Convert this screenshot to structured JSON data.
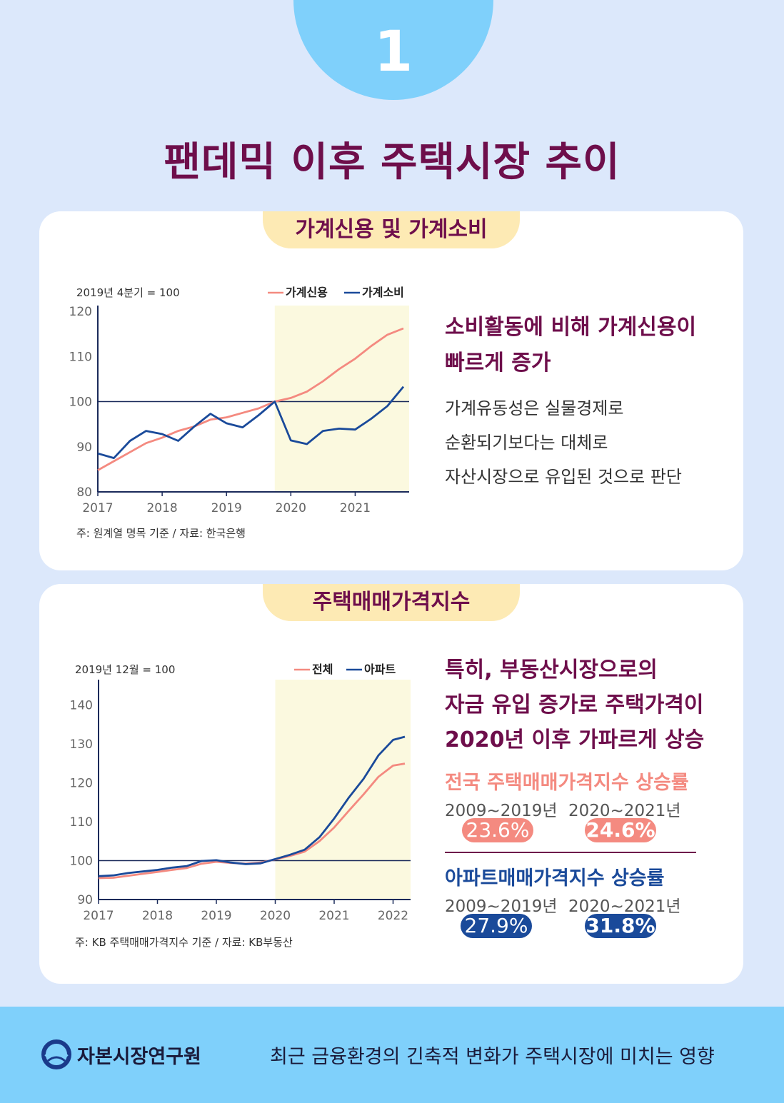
{
  "badge_number": "1",
  "title": "팬데믹 이후 주택시장 추이",
  "colors": {
    "series_red": "#f48a80",
    "series_blue": "#1a4a9a",
    "highlight_box": "#fbf9df",
    "title": "#6e0e4b",
    "tab_bg": "#fdeab4"
  },
  "card1": {
    "tab": "가계신용 및 가계소비",
    "right_headline": [
      "소비활동에 비해 가계신용이",
      "빠르게 증가"
    ],
    "right_body": [
      "가계유동성은 실물경제로",
      "순환되기보다는 대체로",
      "자산시장으로 유입된 것으로 판단"
    ]
  },
  "card2": {
    "tab": "주택매매가격지수",
    "right_headline": [
      "특히, 부동산시장으로의",
      "자금 유입 증가로 주택가격이",
      "2020년 이후 가파르게 상승"
    ],
    "nat_title": "전국 주택매매가격지수 상승률",
    "apt_title": "아파트매매가격지수 상승률",
    "period1": "2009~2019년",
    "period2": "2020~2021년",
    "nat_p1": "23.6%",
    "nat_p2": "24.6%",
    "apt_p1": "27.9%",
    "apt_p2": "31.8%"
  },
  "footer": {
    "logo_icon": "kcmi-logo-icon",
    "org": "자본시장연구원",
    "report_title": "최근 금융환경의 긴축적 변화가 주택시장에 미치는 영향"
  },
  "chart_data": [
    {
      "type": "line",
      "index_note": "2019년 4분기 = 100",
      "note": "주: 원계열 명목 기준 / 자료: 한국은행",
      "x_ticks": [
        "2017",
        "2018",
        "2019",
        "2020",
        "2021"
      ],
      "y_ticks": [
        80,
        90,
        100,
        110,
        120
      ],
      "ylim": [
        80,
        120
      ],
      "xlim": [
        2017.0,
        2021.75
      ],
      "highlight_range": [
        2019.75,
        2021.75
      ],
      "reference_line": 100,
      "series": [
        {
          "name": "가계신용",
          "color": "#f48a80",
          "x": [
            2017.0,
            2017.25,
            2017.5,
            2017.75,
            2018.0,
            2018.25,
            2018.5,
            2018.75,
            2019.0,
            2019.25,
            2019.5,
            2019.75,
            2020.0,
            2020.25,
            2020.5,
            2020.75,
            2021.0,
            2021.25,
            2021.5,
            2021.75
          ],
          "values": [
            84.8,
            86.8,
            88.8,
            90.8,
            92.0,
            93.5,
            94.5,
            96.0,
            96.5,
            97.5,
            98.5,
            100.0,
            100.8,
            102.2,
            104.5,
            107.2,
            109.5,
            112.3,
            114.8,
            116.2
          ]
        },
        {
          "name": "가계소비",
          "color": "#1a4a9a",
          "x": [
            2017.0,
            2017.25,
            2017.5,
            2017.75,
            2018.0,
            2018.25,
            2018.5,
            2018.75,
            2019.0,
            2019.25,
            2019.5,
            2019.75,
            2020.0,
            2020.25,
            2020.5,
            2020.75,
            2021.0,
            2021.25,
            2021.5,
            2021.75
          ],
          "values": [
            88.5,
            87.5,
            91.3,
            93.5,
            92.8,
            91.3,
            94.5,
            97.3,
            95.2,
            94.3,
            97.0,
            100.0,
            91.4,
            90.6,
            93.5,
            94.0,
            93.8,
            96.2,
            99.0,
            103.3
          ]
        }
      ]
    },
    {
      "type": "line",
      "index_note": "2019년 12월 = 100",
      "note": "주: KB 주택매매가격지수 기준 / 자료: KB부동산",
      "x_ticks": [
        "2017",
        "2018",
        "2019",
        "2020",
        "2021",
        "2022"
      ],
      "y_ticks": [
        90,
        100,
        110,
        120,
        130,
        140
      ],
      "ylim": [
        90,
        145
      ],
      "xlim": [
        2017.0,
        2022.2
      ],
      "highlight_range": [
        2020.0,
        2022.2
      ],
      "reference_line": 100,
      "series": [
        {
          "name": "전체",
          "color": "#f48a80",
          "x": [
            2017.0,
            2017.25,
            2017.5,
            2017.75,
            2018.0,
            2018.25,
            2018.5,
            2018.75,
            2019.0,
            2019.25,
            2019.5,
            2019.75,
            2020.0,
            2020.25,
            2020.5,
            2020.75,
            2021.0,
            2021.25,
            2021.5,
            2021.75,
            2022.0,
            2022.2
          ],
          "values": [
            95.5,
            95.6,
            96.1,
            96.6,
            97.1,
            97.6,
            98.1,
            99.2,
            99.7,
            99.4,
            99.2,
            99.5,
            100.3,
            101.2,
            102.3,
            105.0,
            108.5,
            112.8,
            117.0,
            121.5,
            124.4,
            124.9
          ]
        },
        {
          "name": "아파트",
          "color": "#1a4a9a",
          "x": [
            2017.0,
            2017.25,
            2017.5,
            2017.75,
            2018.0,
            2018.25,
            2018.5,
            2018.75,
            2019.0,
            2019.25,
            2019.5,
            2019.75,
            2020.0,
            2020.25,
            2020.5,
            2020.75,
            2021.0,
            2021.25,
            2021.5,
            2021.75,
            2022.0,
            2022.2
          ],
          "values": [
            96.0,
            96.2,
            96.8,
            97.2,
            97.6,
            98.2,
            98.6,
            99.9,
            100.1,
            99.5,
            99.1,
            99.3,
            100.4,
            101.5,
            102.8,
            106.0,
            110.8,
            116.2,
            121.0,
            127.0,
            131.0,
            131.8
          ]
        }
      ]
    }
  ]
}
